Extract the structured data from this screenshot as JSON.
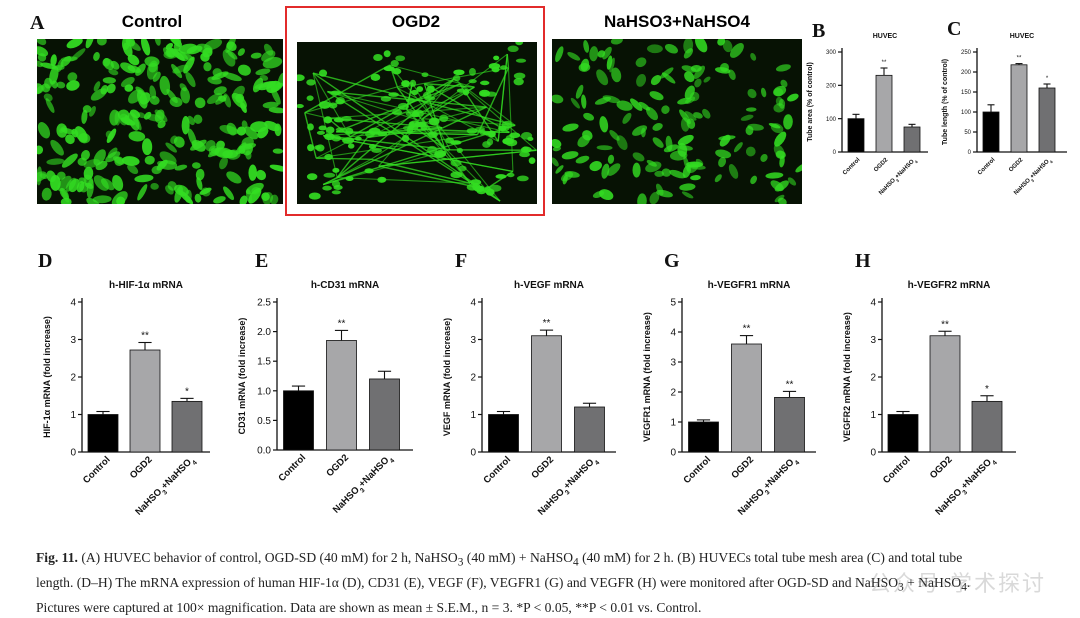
{
  "panel_labels": {
    "A": "A",
    "B": "B",
    "C": "C",
    "D": "D",
    "E": "E",
    "F": "F",
    "G": "G",
    "H": "H"
  },
  "images": [
    {
      "title": "Control"
    },
    {
      "title": "OGD2"
    },
    {
      "title": "NaHSO3+NaHSO4"
    }
  ],
  "colors": {
    "bar_control": "#000000",
    "bar_ogd": "#a7a7a9",
    "bar_treat": "#707072",
    "highlight_box": "#e22b2b",
    "fluorescence": "#33dd22"
  },
  "chart_data": [
    {
      "id": "B",
      "type": "bar",
      "title": "HUVEC",
      "ylabel": "Tube area (% of control)",
      "ylim": [
        0,
        300
      ],
      "yticks": [
        0,
        100,
        200,
        300
      ],
      "categories": [
        "Control",
        "OGD2",
        "NaHSO3+NaHSO4"
      ],
      "tick_labels": [
        [
          "Control"
        ],
        [
          "OGD2"
        ],
        [
          "NaHSO",
          "3",
          "+NaHSO",
          "4"
        ]
      ],
      "values": [
        100,
        230,
        75
      ],
      "errors": [
        13,
        22,
        8
      ],
      "sig": [
        "",
        "**",
        ""
      ]
    },
    {
      "id": "C",
      "type": "bar",
      "title": "HUVEC",
      "ylabel": "Tube length (% of control)",
      "ylim": [
        0,
        250
      ],
      "yticks": [
        0,
        50,
        100,
        150,
        200,
        250
      ],
      "categories": [
        "Control",
        "OGD2",
        "NaHSO3+NaHSO4"
      ],
      "tick_labels": [
        [
          "Control"
        ],
        [
          "OGD2"
        ],
        [
          "NaHSO",
          "3",
          "+NaHSO",
          "4"
        ]
      ],
      "values": [
        100,
        218,
        160
      ],
      "errors": [
        18,
        3,
        10
      ],
      "sig": [
        "",
        "**",
        "*"
      ]
    },
    {
      "id": "D",
      "type": "bar",
      "title": "h-HIF-1α mRNA",
      "ylabel": "HIF-1α mRNA (fold increase)",
      "ylim": [
        0,
        4
      ],
      "yticks": [
        0,
        1,
        2,
        3,
        4
      ],
      "categories": [
        "Control",
        "OGD2",
        "NaHSO3+NaHSO4"
      ],
      "tick_labels": [
        [
          "Control"
        ],
        [
          "OGD2"
        ],
        [
          "NaHSO",
          "3",
          "+NaHSO",
          "4"
        ]
      ],
      "values": [
        1.0,
        2.72,
        1.35
      ],
      "errors": [
        0.08,
        0.2,
        0.08
      ],
      "sig": [
        "",
        "**",
        "*"
      ]
    },
    {
      "id": "E",
      "type": "bar",
      "title": "h-CD31 mRNA",
      "ylabel": "CD31 mRNA (fold increase)",
      "ylim": [
        0,
        2.5
      ],
      "yticks": [
        "0.0",
        "0.5",
        "1.0",
        "1.5",
        "2.0",
        "2.5"
      ],
      "categories": [
        "Control",
        "OGD2",
        "NaHSO3+NaHSO4"
      ],
      "tick_labels": [
        [
          "Control"
        ],
        [
          "OGD2"
        ],
        [
          "NaHSO",
          "3",
          "+NaHSO",
          "4"
        ]
      ],
      "values": [
        1.0,
        1.85,
        1.2
      ],
      "errors": [
        0.08,
        0.17,
        0.13
      ],
      "sig": [
        "",
        "**",
        ""
      ]
    },
    {
      "id": "F",
      "type": "bar",
      "title": "h-VEGF mRNA",
      "ylabel": "VEGF mRNA (fold increase)",
      "ylim": [
        0,
        4
      ],
      "yticks": [
        0,
        1,
        2,
        3,
        4
      ],
      "categories": [
        "Control",
        "OGD2",
        "NaHSO3+NaHSO4"
      ],
      "tick_labels": [
        [
          "Control"
        ],
        [
          "OGD2"
        ],
        [
          "NaHSO",
          "3",
          "+NaHSO",
          "4"
        ]
      ],
      "values": [
        1.0,
        3.1,
        1.2
      ],
      "errors": [
        0.08,
        0.15,
        0.1
      ],
      "sig": [
        "",
        "**",
        ""
      ]
    },
    {
      "id": "G",
      "type": "bar",
      "title": "h-VEGFR1 mRNA",
      "ylabel": "VEGFR1 mRNA (fold increase)",
      "ylim": [
        0,
        5
      ],
      "yticks": [
        0,
        1,
        2,
        3,
        4,
        5
      ],
      "categories": [
        "Control",
        "OGD2",
        "NaHSO3+NaHSO4"
      ],
      "tick_labels": [
        [
          "Control"
        ],
        [
          "OGD2"
        ],
        [
          "NaHSO",
          "3",
          "+NaHSO",
          "4"
        ]
      ],
      "values": [
        1.0,
        3.6,
        1.82
      ],
      "errors": [
        0.07,
        0.28,
        0.2
      ],
      "sig": [
        "",
        "**",
        "**"
      ]
    },
    {
      "id": "H",
      "type": "bar",
      "title": "h-VEGFR2 mRNA",
      "ylabel": "VEGFR2 mRNA (fold increase)",
      "ylim": [
        0,
        4
      ],
      "yticks": [
        0,
        1,
        2,
        3,
        4
      ],
      "categories": [
        "Control",
        "OGD2",
        "NaHSO3+NaHSO4"
      ],
      "tick_labels": [
        [
          "Control"
        ],
        [
          "OGD2"
        ],
        [
          "NaHSO",
          "3",
          "+NaHSO",
          "4"
        ]
      ],
      "values": [
        1.0,
        3.1,
        1.35
      ],
      "errors": [
        0.08,
        0.12,
        0.15
      ],
      "sig": [
        "",
        "**",
        "*"
      ]
    }
  ],
  "caption": {
    "fig": "Fig. 11.",
    "line1a": " (A) HUVEC behavior of control, OGD-SD (40 mM) for 2 h, NaHSO",
    "sub3": "3",
    "line1b": " (40 mM) + NaHSO",
    "sub4": "4",
    "line1c": " (40 mM) for 2 h. (B) HUVECs total tube mesh area (C) and total tube",
    "line2a": "length. (D–H) The mRNA expression of human HIF-1α (D), CD31 (E), VEGF (F), VEGFR1 (G) and VEGFR (H) were monitored after OGD-SD and NaHSO",
    "line2b": " + NaHSO",
    "line2c": ".",
    "line3": "Pictures were captured at 100× magnification. Data are shown as mean ± S.E.M., n = 3. *P < 0.05, **P < 0.01 vs. Control."
  },
  "watermark": "公众号·学术探讨"
}
